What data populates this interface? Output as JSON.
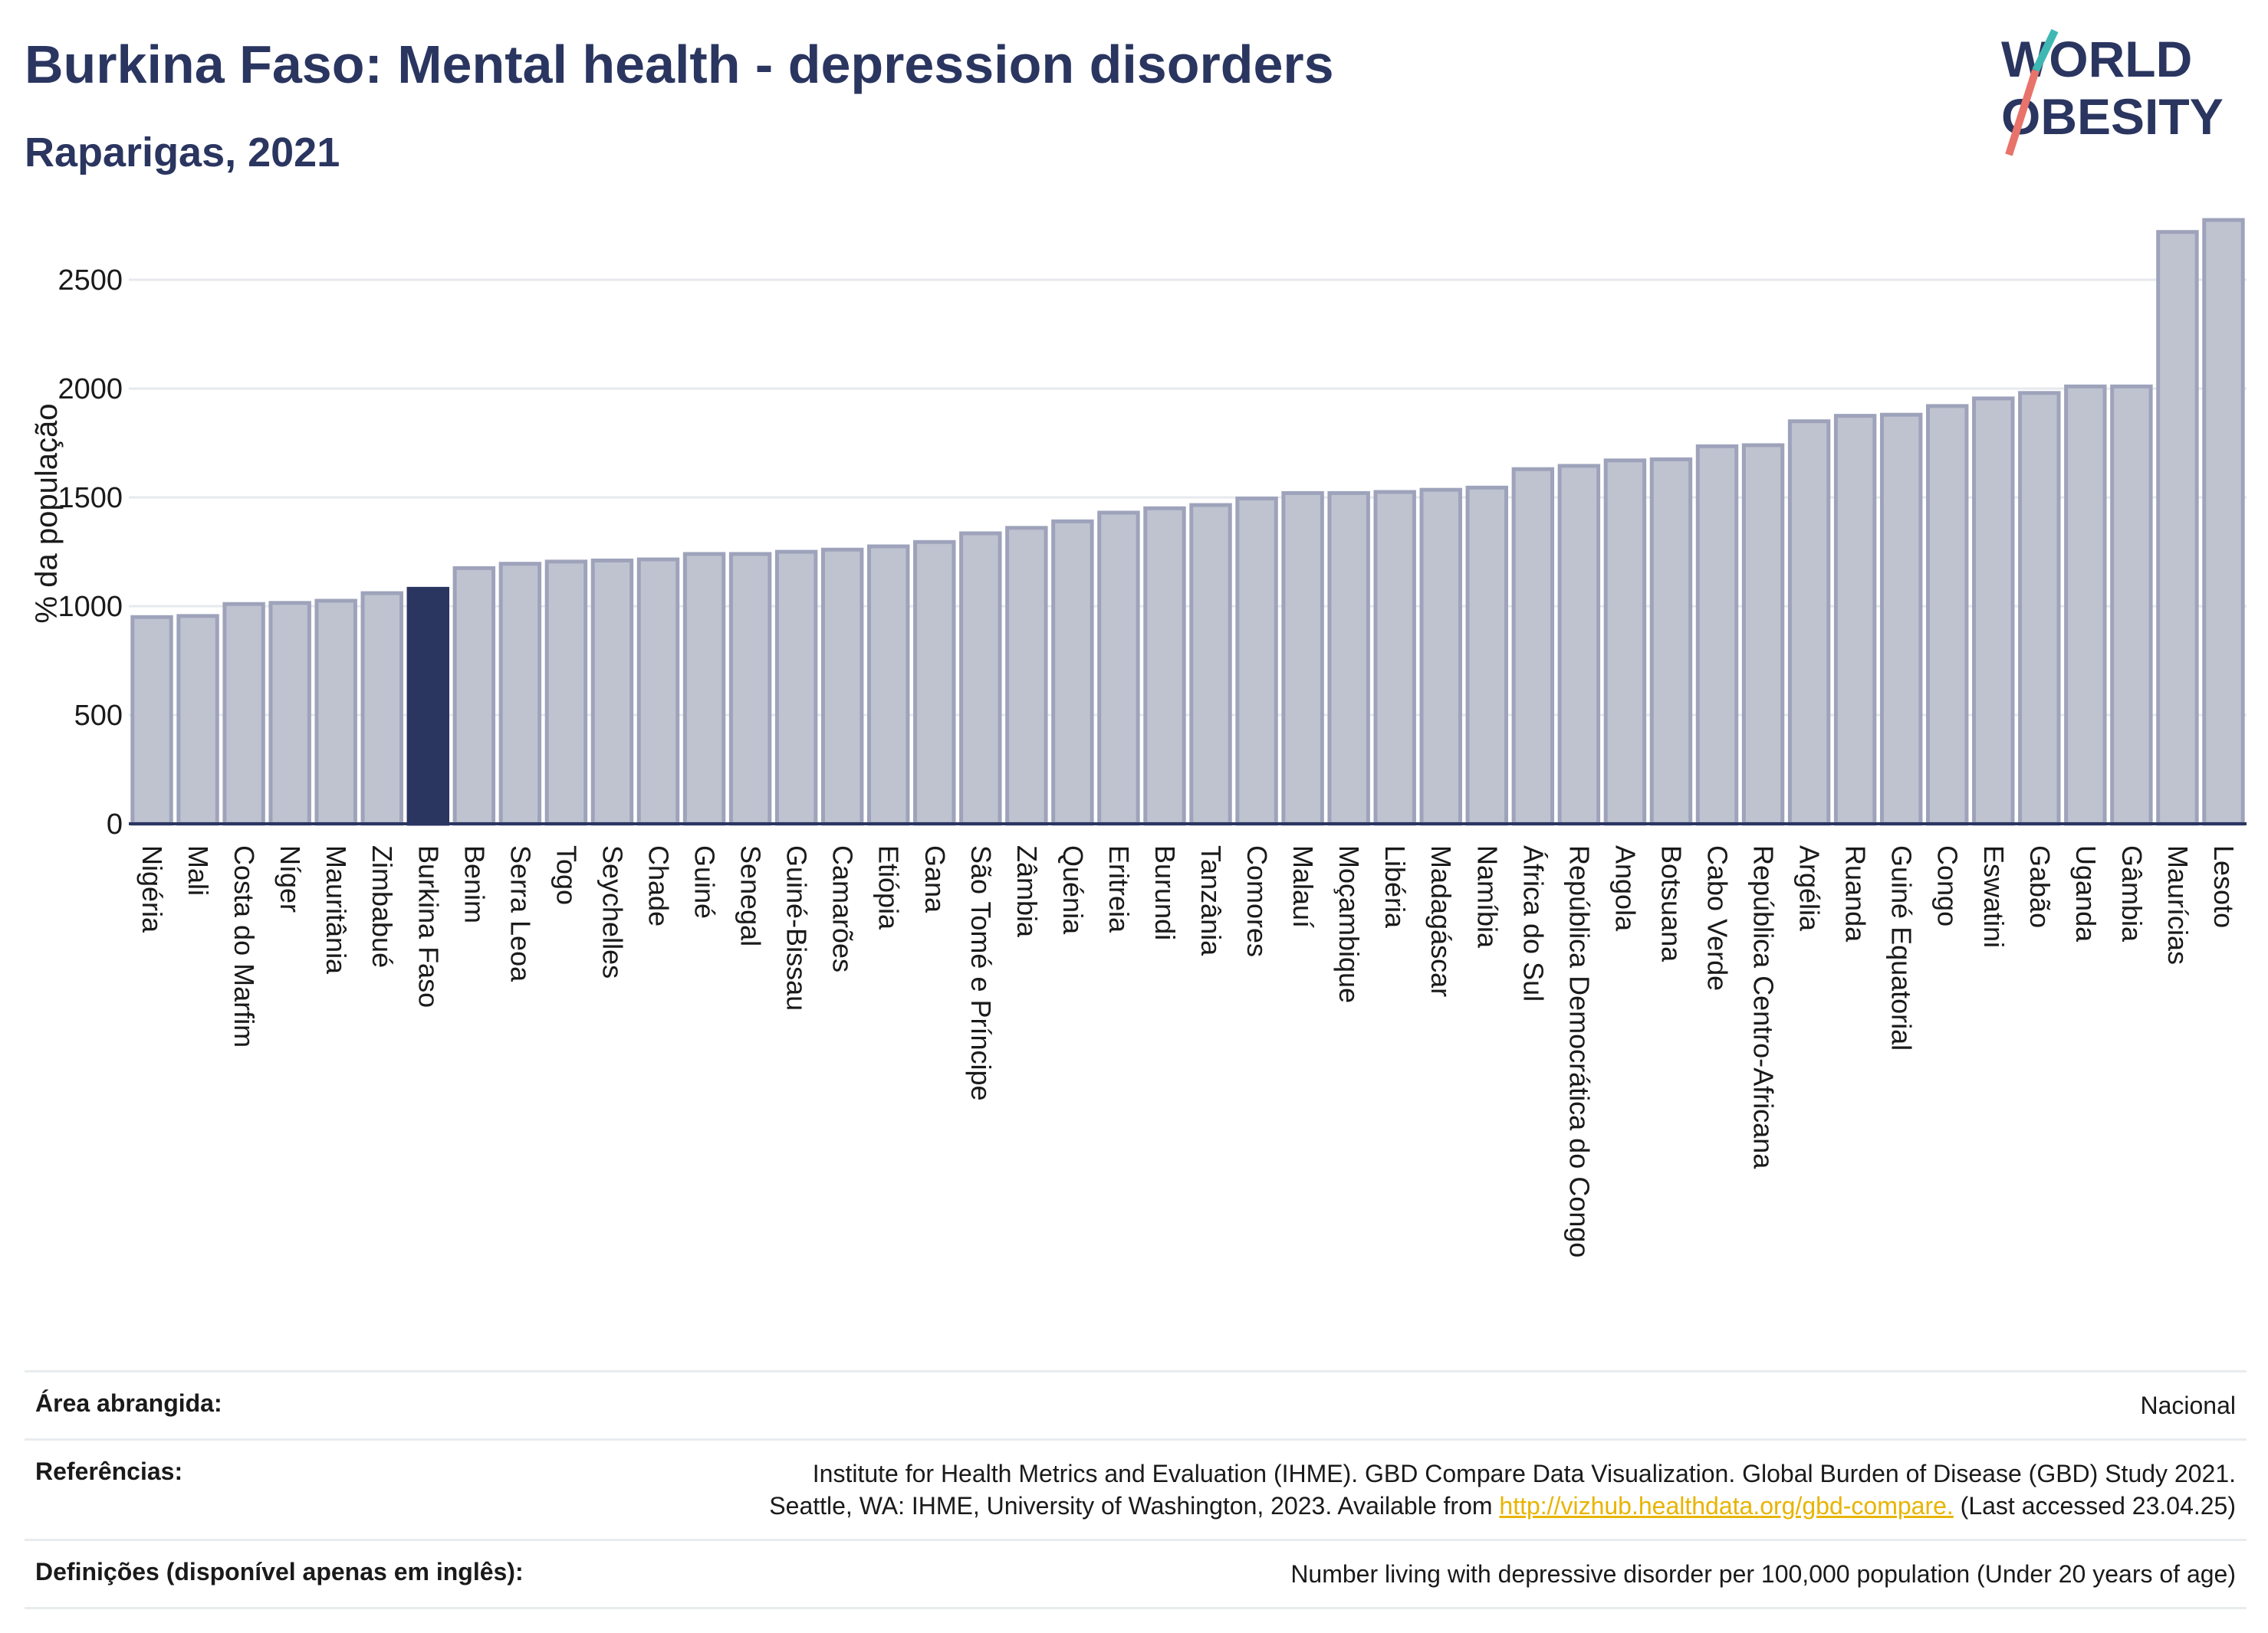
{
  "header": {
    "title": "Burkina Faso: Mental health - depression disorders",
    "subtitle": "Raparigas, 2021"
  },
  "logo": {
    "line1": "WORLD",
    "line2": "OBESITY"
  },
  "colors": {
    "highlight": "#2a3560",
    "bar_fill": "#bfc3d0",
    "bar_stroke": "#9ea3bb",
    "grid": "#e6e9ee",
    "logo_teal": "#3fb8b4",
    "logo_coral": "#e8736a",
    "link": "#e8b400"
  },
  "chart_data": {
    "type": "bar",
    "ylabel": "% da população",
    "ylim": [
      0,
      2800
    ],
    "yticks": [
      0,
      500,
      1000,
      1500,
      2000,
      2500
    ],
    "grid": true,
    "highlight_category": "Burkina Faso",
    "categories": [
      "Nigéria",
      "Mali",
      "Costa do Marfim",
      "Níger",
      "Mauritânia",
      "Zimbabué",
      "Burkina Faso",
      "Benim",
      "Serra Leoa",
      "Togo",
      "Seychelles",
      "Chade",
      "Guiné",
      "Senegal",
      "Guiné-Bissau",
      "Camarões",
      "Etiópia",
      "Gana",
      "São Tomé e Príncipe",
      "Zâmbia",
      "Quénia",
      "Eritreia",
      "Burundi",
      "Tanzânia",
      "Comores",
      "Malauí",
      "Moçambique",
      "Libéria",
      "Madagáscar",
      "Namíbia",
      "África do Sul",
      "República Democrática do Congo",
      "Angola",
      "Botsuana",
      "Cabo Verde",
      "República Centro-Africana",
      "Argélia",
      "Ruanda",
      "Guiné Equatorial",
      "Congo",
      "Eswatini",
      "Gabão",
      "Uganda",
      "Gâmbia",
      "Maurícias",
      "Lesoto"
    ],
    "values": [
      950,
      955,
      1010,
      1015,
      1025,
      1060,
      1080,
      1175,
      1195,
      1205,
      1210,
      1215,
      1240,
      1240,
      1250,
      1260,
      1275,
      1295,
      1335,
      1360,
      1390,
      1430,
      1450,
      1465,
      1495,
      1520,
      1520,
      1525,
      1535,
      1545,
      1630,
      1645,
      1670,
      1675,
      1735,
      1740,
      1850,
      1875,
      1880,
      1920,
      1955,
      1980,
      2010,
      2010,
      2720,
      2775
    ]
  },
  "footer": {
    "rows": [
      {
        "label": "Área abrangida:",
        "lines": [
          "Nacional"
        ]
      },
      {
        "label": "Referências:",
        "lines": [
          "Institute for Health Metrics and Evaluation (IHME). GBD Compare Data Visualization. Global Burden of Disease (GBD) Study 2021.",
          "Seattle, WA: IHME, University of Washington, 2023. Available from "
        ],
        "link": "http://vizhub.healthdata.org/gbd-compare.",
        "after_link": " (Last accessed 23.04.25)"
      },
      {
        "label": "Definições (disponível apenas em inglês):",
        "lines": [
          "Number living with depressive disorder per 100,000 population (Under 20 years of age)"
        ]
      }
    ]
  }
}
